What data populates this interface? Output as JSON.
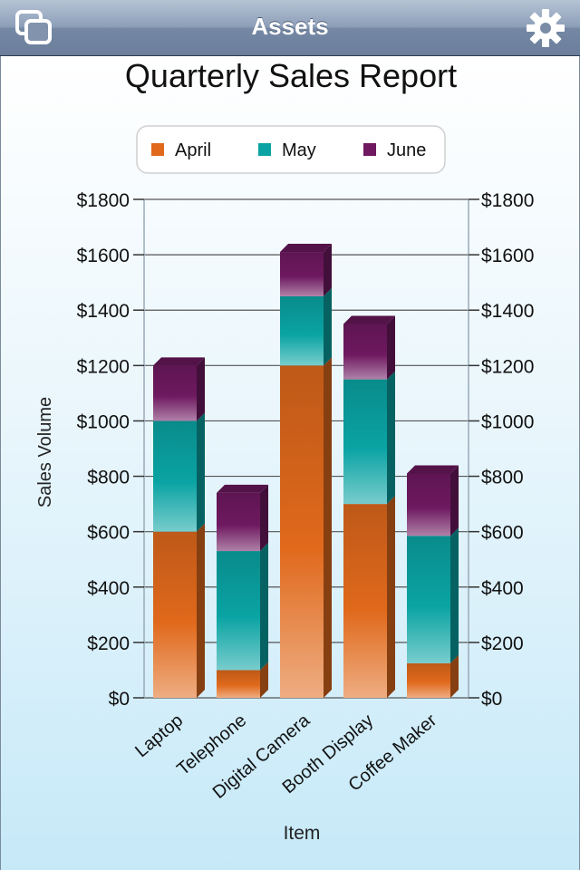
{
  "navbar": {
    "title": "Assets",
    "left_icon": "windows-icon",
    "right_icon": "gear-icon"
  },
  "chart_data": {
    "type": "bar",
    "stacked": true,
    "style": "3d",
    "title": "Quarterly Sales Report",
    "xlabel": "Item",
    "ylabel": "Sales Volume",
    "ylim": [
      0,
      1800
    ],
    "yticks": [
      "$0",
      "$200",
      "$400",
      "$600",
      "$800",
      "$1000",
      "$1200",
      "$1400",
      "$1600",
      "$1800"
    ],
    "ytick_values": [
      0,
      200,
      400,
      600,
      800,
      1000,
      1200,
      1400,
      1600,
      1800
    ],
    "categories": [
      "Laptop",
      "Telephone",
      "Digital Camera",
      "Booth Display",
      "Coffee Maker"
    ],
    "series": [
      {
        "name": "April",
        "color": "#e0691c",
        "values": [
          600,
          100,
          1200,
          700,
          125
        ]
      },
      {
        "name": "May",
        "color": "#0aa3a3",
        "values": [
          400,
          430,
          250,
          450,
          460
        ]
      },
      {
        "name": "June",
        "color": "#6e1960",
        "values": [
          200,
          210,
          160,
          200,
          225
        ]
      }
    ],
    "legend": "top-center",
    "grid": true,
    "right_axis": true
  }
}
